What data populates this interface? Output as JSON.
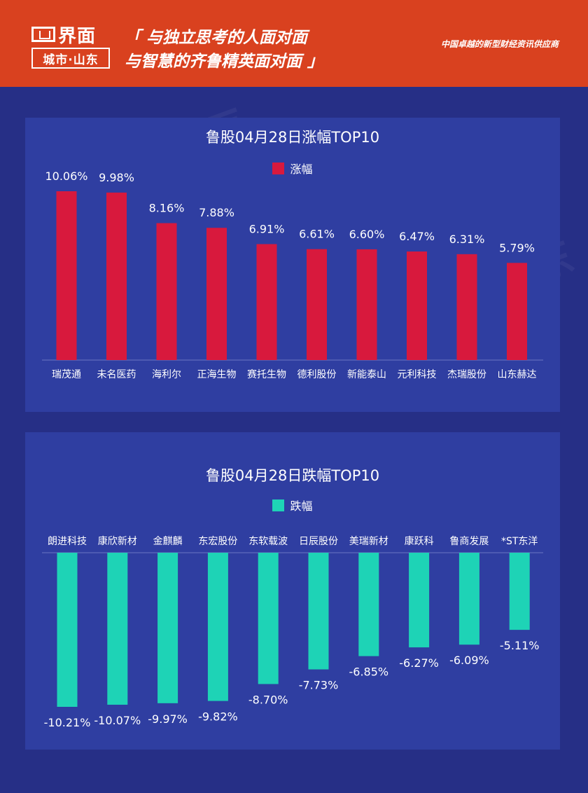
{
  "header": {
    "logo_main": "界面",
    "logo_sub": "城市·山东",
    "slogan_line1": "「 与独立思考的人面对面",
    "slogan_line2": "与智慧的齐鲁精英面对面 」",
    "tagline": "中国卓越的新型财经资讯供应商",
    "bg_color": "#d9411f"
  },
  "colors": {
    "page_bg": "#262f86",
    "panel_bg": "#2f3ea1",
    "gain_bar": "#d8193d",
    "loss_bar": "#1ed3b6"
  },
  "chart_data": [
    {
      "type": "bar",
      "title": "鲁股04月28日涨幅TOP10",
      "series": [
        {
          "name": "涨幅",
          "values": [
            10.06,
            9.98,
            8.16,
            7.88,
            6.91,
            6.61,
            6.6,
            6.47,
            6.31,
            5.79
          ],
          "labels": [
            "10.06%",
            "9.98%",
            "8.16%",
            "7.88%",
            "6.91%",
            "6.61%",
            "6.60%",
            "6.47%",
            "6.31%",
            "5.79%"
          ]
        }
      ],
      "categories": [
        "瑞茂通",
        "未名医药",
        "海利尔",
        "正海生物",
        "赛托生物",
        "德利股份",
        "新能泰山",
        "元利科技",
        "杰瑞股份",
        "山东赫达"
      ],
      "ylim": [
        0,
        10.06
      ],
      "legend": "top-center",
      "grid": false
    },
    {
      "type": "bar",
      "title": "鲁股04月28日跌幅TOP10",
      "series": [
        {
          "name": "跌幅",
          "values": [
            -10.21,
            -10.07,
            -9.97,
            -9.82,
            -8.7,
            -7.73,
            -6.85,
            -6.27,
            -6.09,
            -5.11
          ],
          "labels": [
            "-10.21%",
            "-10.07%",
            "-9.97%",
            "-9.82%",
            "-8.70%",
            "-7.73%",
            "-6.85%",
            "-6.27%",
            "-6.09%",
            "-5.11%"
          ]
        }
      ],
      "categories": [
        "朗进科技",
        "康欣新材",
        "金麒麟",
        "东宏股份",
        "东软载波",
        "日辰股份",
        "美瑞新材",
        "康跃科",
        "鲁商发展",
        "*ST东洋"
      ],
      "ylim": [
        -10.21,
        0
      ],
      "legend": "top-center",
      "grid": false
    }
  ]
}
